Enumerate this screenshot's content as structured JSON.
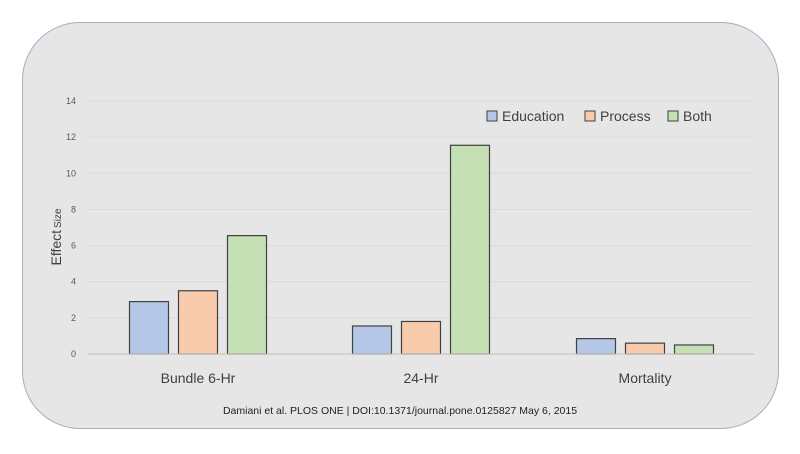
{
  "chart_data": {
    "type": "bar",
    "categories": [
      "Bundle 6-Hr",
      "24-Hr",
      "Mortality"
    ],
    "series": [
      {
        "name": "Education",
        "values": [
          2.9,
          1.55,
          0.85
        ],
        "color": "#b4c7e7"
      },
      {
        "name": "Process",
        "values": [
          3.5,
          1.8,
          0.6
        ],
        "color": "#f8cbad"
      },
      {
        "name": "Both",
        "values": [
          6.55,
          11.55,
          0.5
        ],
        "color": "#c5e0b4"
      }
    ],
    "ylabel_main": "Effect",
    "ylabel_sub": "Size",
    "xlabel": "",
    "ylim": [
      0,
      14
    ],
    "yticks": [
      0,
      2,
      4,
      6,
      8,
      10,
      12,
      14
    ],
    "grid": true,
    "legend_position": "top-right",
    "bar_outline_color": "#404040",
    "gridline_color": "#d9d9d9"
  },
  "footer": {
    "citation": "Damiani et al.  PLOS ONE | DOI:10.1371/journal.pone.0125827 May 6, 2015"
  }
}
